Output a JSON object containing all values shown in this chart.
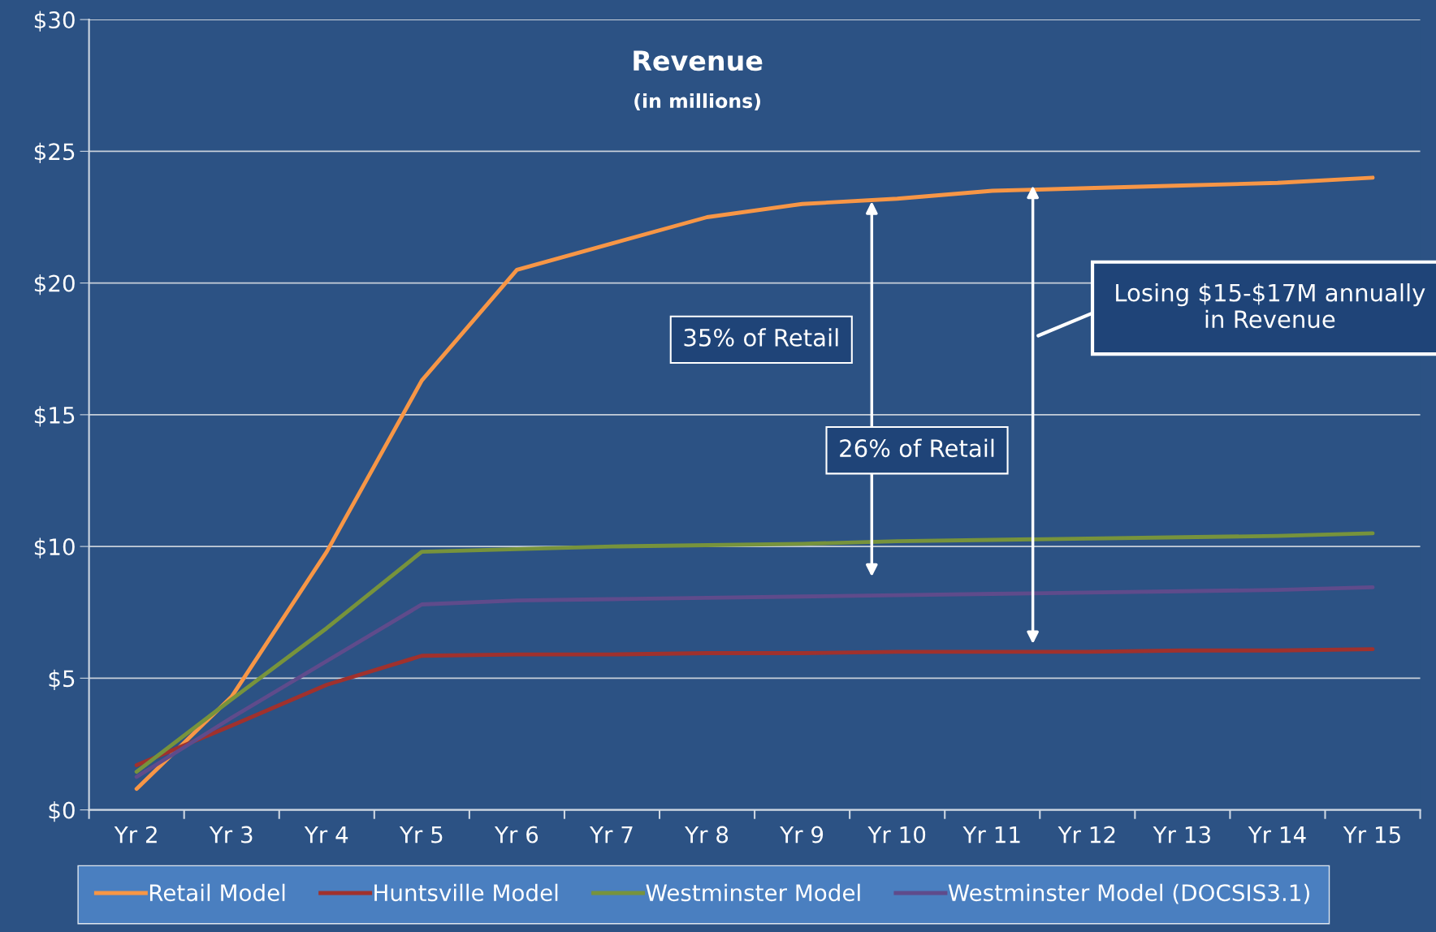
{
  "chart_data": {
    "type": "line",
    "title": "Revenue",
    "subtitle": "(in millions)",
    "categories": [
      "Yr 2",
      "Yr 3",
      "Yr 4",
      "Yr 5",
      "Yr 6",
      "Yr 7",
      "Yr 8",
      "Yr 9",
      "Yr 10",
      "Yr 11",
      "Yr 12",
      "Yr 13",
      "Yr 14",
      "Yr 15"
    ],
    "series": [
      {
        "name": "Retail Model",
        "color": "#f79646",
        "values": [
          0.8,
          4.3,
          9.8,
          16.3,
          20.5,
          21.5,
          22.5,
          23.0,
          23.2,
          23.5,
          23.6,
          23.7,
          23.8,
          24.0
        ]
      },
      {
        "name": "Huntsville Model",
        "color": "#a0312d",
        "values": [
          1.7,
          3.2,
          4.75,
          5.85,
          5.9,
          5.9,
          5.95,
          5.95,
          6.0,
          6.0,
          6.0,
          6.05,
          6.05,
          6.1
        ]
      },
      {
        "name": "Westminster Model",
        "color": "#77933c",
        "values": [
          1.45,
          4.2,
          6.9,
          9.8,
          9.9,
          10.0,
          10.05,
          10.1,
          10.2,
          10.25,
          10.3,
          10.35,
          10.4,
          10.5
        ]
      },
      {
        "name": "Westminster Model (DOCSIS3.1)",
        "color": "#5f4b8b",
        "values": [
          1.25,
          3.5,
          5.65,
          7.8,
          7.95,
          8.0,
          8.05,
          8.1,
          8.15,
          8.2,
          8.25,
          8.3,
          8.35,
          8.45
        ]
      }
    ],
    "ylim": [
      0,
      30
    ],
    "yticks": [
      {
        "value": 0,
        "label": "$0"
      },
      {
        "value": 5,
        "label": "$5"
      },
      {
        "value": 10,
        "label": "$10"
      },
      {
        "value": 15,
        "label": "$15"
      },
      {
        "value": 20,
        "label": "$20"
      },
      {
        "value": 25,
        "label": "$25"
      },
      {
        "value": 30,
        "label": "$30"
      }
    ],
    "grid": "y",
    "legend": "bottom",
    "marker": "none",
    "line_style": "solid",
    "annotations": [
      "35% of Retail",
      "26% of Retail",
      "Losing $15-$17M annually in Revenue"
    ]
  }
}
